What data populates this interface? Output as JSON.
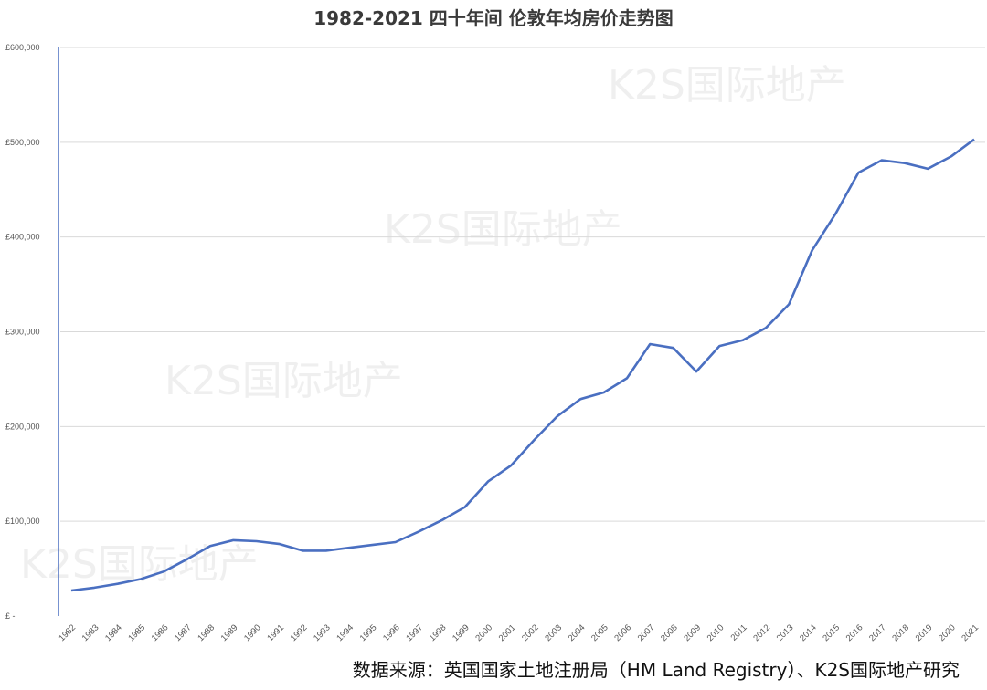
{
  "chart_data": {
    "type": "line",
    "title": "1982-2021 四十年间 伦敦年均房价走势图",
    "xlabel": "",
    "ylabel": "",
    "ylim": [
      0,
      600000
    ],
    "y_ticks": [
      0,
      100000,
      200000,
      300000,
      400000,
      500000,
      600000
    ],
    "y_tick_labels": [
      "£ -",
      "£100,000",
      "£200,000",
      "£300,000",
      "£400,000",
      "£500,000",
      "£600,000"
    ],
    "grid": true,
    "categories": [
      "1982",
      "1983",
      "1984",
      "1985",
      "1986",
      "1987",
      "1988",
      "1989",
      "1990",
      "1991",
      "1992",
      "1993",
      "1994",
      "1995",
      "1996",
      "1997",
      "1998",
      "1999",
      "2000",
      "2001",
      "2002",
      "2003",
      "2004",
      "2005",
      "2006",
      "2007",
      "2008",
      "2009",
      "2010",
      "2011",
      "2012",
      "2013",
      "2014",
      "2015",
      "2016",
      "2017",
      "2018",
      "2019",
      "2020",
      "2021"
    ],
    "series": [
      {
        "color": "#4a6fc1",
        "values": [
          27000,
          30000,
          34000,
          39000,
          47000,
          60000,
          74000,
          80000,
          79000,
          76000,
          69000,
          69000,
          72000,
          75000,
          78000,
          89000,
          101000,
          115000,
          142000,
          159000,
          186000,
          211000,
          229000,
          236000,
          251000,
          287000,
          283000,
          258000,
          285000,
          291000,
          304000,
          329000,
          386000,
          424000,
          468000,
          481000,
          478000,
          472000,
          485000,
          503000
        ]
      }
    ],
    "watermark": "K2S国际地产",
    "source_note": "数据来源：英国国家土地注册局（HM Land Registry）、K2S国际地产研究"
  },
  "colors": {
    "line": "#4a6fc1",
    "grid": "#d9d9d9",
    "axis": "#4a6fc1"
  }
}
